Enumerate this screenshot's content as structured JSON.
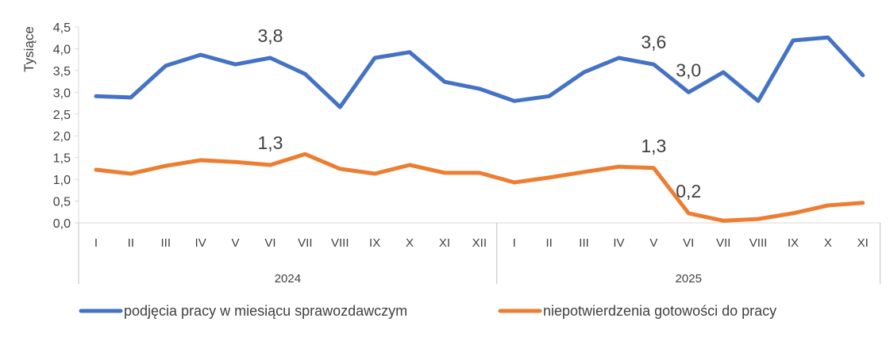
{
  "chart_data": {
    "type": "line",
    "title": "",
    "ylabel": "Tysiące",
    "xlabel": "",
    "ylim": [
      0,
      4.5
    ],
    "yticks": [
      "0,0",
      "0,5",
      "1,0",
      "1,5",
      "2,0",
      "2,5",
      "3,0",
      "3,5",
      "4,0",
      "4,5"
    ],
    "grid": false,
    "legend_position": "bottom",
    "groups": [
      {
        "label": "2024",
        "categories": [
          "I",
          "II",
          "III",
          "IV",
          "V",
          "VI",
          "VII",
          "VIII",
          "IX",
          "X",
          "XI",
          "XII"
        ]
      },
      {
        "label": "2025",
        "categories": [
          "I",
          "II",
          "III",
          "IV",
          "V",
          "VI",
          "VII",
          "VIII",
          "IX",
          "X",
          "XI"
        ]
      }
    ],
    "series": [
      {
        "name": "podjęcia pracy w miesiącu sprawozdawczym",
        "color": "#4472C4",
        "values": [
          2.91,
          2.88,
          3.61,
          3.86,
          3.64,
          3.79,
          3.42,
          2.66,
          3.79,
          3.92,
          3.24,
          3.08,
          2.8,
          2.91,
          3.46,
          3.79,
          3.64,
          3.0,
          3.46,
          2.8,
          4.19,
          4.26,
          3.39
        ]
      },
      {
        "name": "niepotwierdzenia gotowości do pracy",
        "color": "#ED7D31",
        "values": [
          1.22,
          1.13,
          1.31,
          1.44,
          1.4,
          1.33,
          1.58,
          1.24,
          1.13,
          1.33,
          1.15,
          1.15,
          0.93,
          1.04,
          1.17,
          1.29,
          1.26,
          0.22,
          0.05,
          0.09,
          0.22,
          0.4,
          0.46
        ]
      }
    ],
    "annotations": [
      {
        "text": "3,8",
        "series": 0,
        "index": 5
      },
      {
        "text": "1,3",
        "series": 1,
        "index": 5
      },
      {
        "text": "3,6",
        "series": 0,
        "index": 16
      },
      {
        "text": "3,0",
        "series": 0,
        "index": 17
      },
      {
        "text": "1,3",
        "series": 1,
        "index": 16
      },
      {
        "text": "0,2",
        "series": 1,
        "index": 17
      }
    ]
  }
}
